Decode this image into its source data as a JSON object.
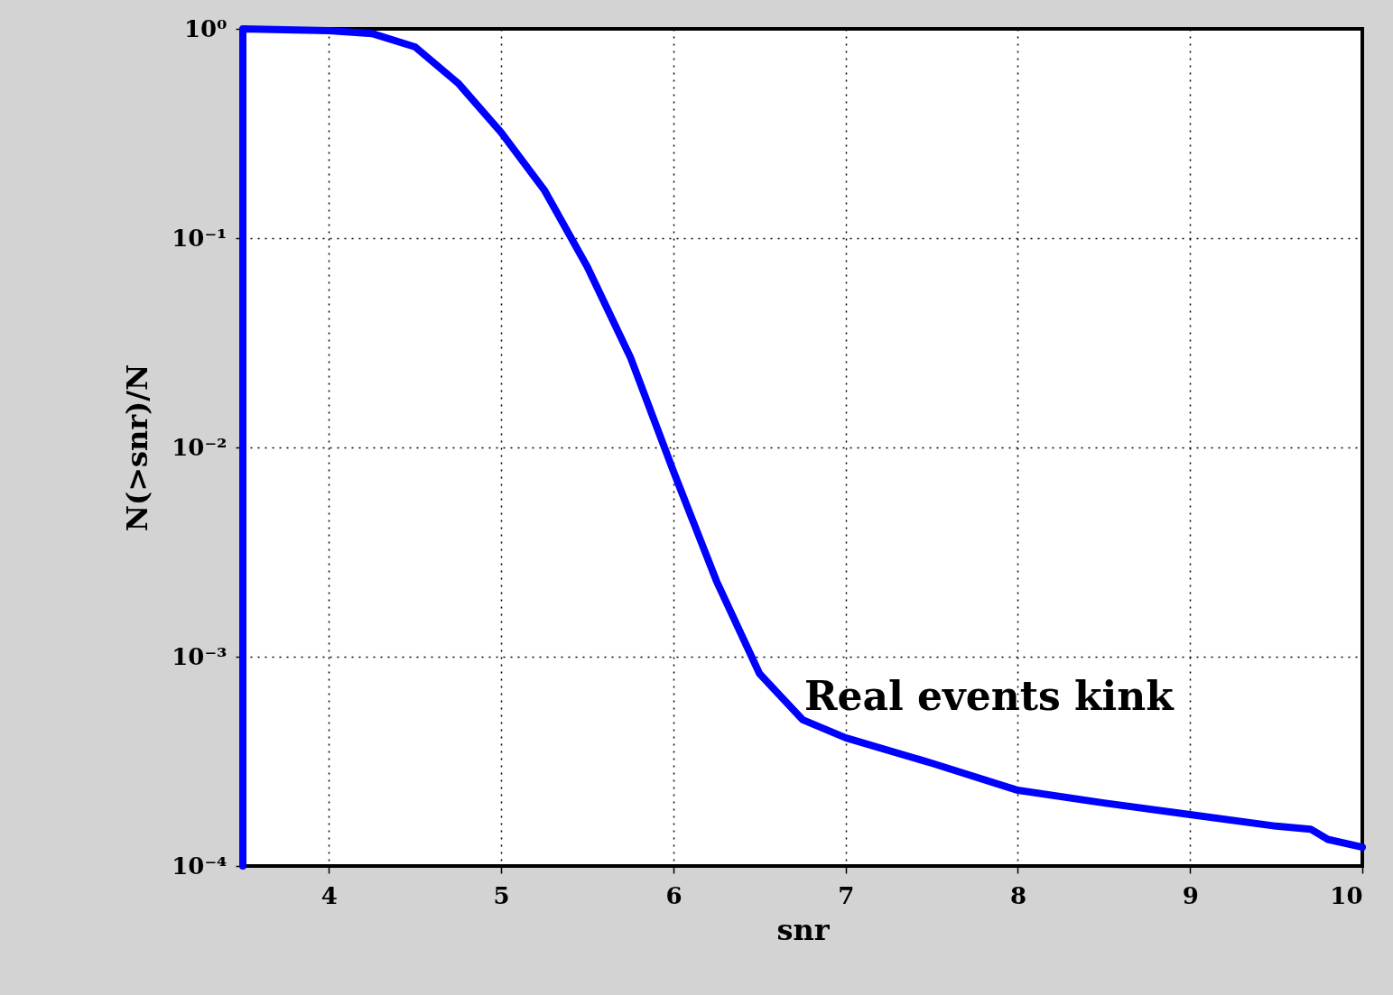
{
  "chart_data": {
    "type": "line",
    "xlabel": "snr",
    "ylabel": "N(>snr)/N",
    "log": "y",
    "grid": true,
    "line_style": "solid",
    "xlim": [
      3.5,
      10
    ],
    "xticks": [
      4,
      5,
      6,
      7,
      8,
      9,
      10
    ],
    "ylim": [
      0.0001,
      1
    ],
    "yticks": [
      {
        "value": 0.0001,
        "label": "10⁻⁴"
      },
      {
        "value": 0.001,
        "label": "10⁻³"
      },
      {
        "value": 0.01,
        "label": "10⁻²"
      },
      {
        "value": 0.1,
        "label": "10⁻¹"
      },
      {
        "value": 1,
        "label": "10⁰"
      }
    ],
    "series": [
      {
        "color": "#0000ff",
        "x": [
          3.5,
          3.5,
          4.0,
          4.25,
          4.5,
          4.75,
          5.0,
          5.25,
          5.5,
          5.75,
          6.0,
          6.25,
          6.5,
          6.75,
          7.0,
          7.5,
          8.0,
          8.5,
          9.0,
          9.5,
          9.7,
          9.8,
          10.0
        ],
        "values": [
          0.0001,
          1.0,
          0.98,
          0.95,
          0.82,
          0.55,
          0.32,
          0.17,
          0.073,
          0.027,
          0.0077,
          0.0023,
          0.00083,
          0.0005,
          0.00041,
          0.00031,
          0.00023,
          0.0002,
          0.000176,
          0.000155,
          0.00015,
          0.000134,
          0.000123
        ]
      }
    ],
    "annotations": [
      "Real events kink"
    ]
  }
}
